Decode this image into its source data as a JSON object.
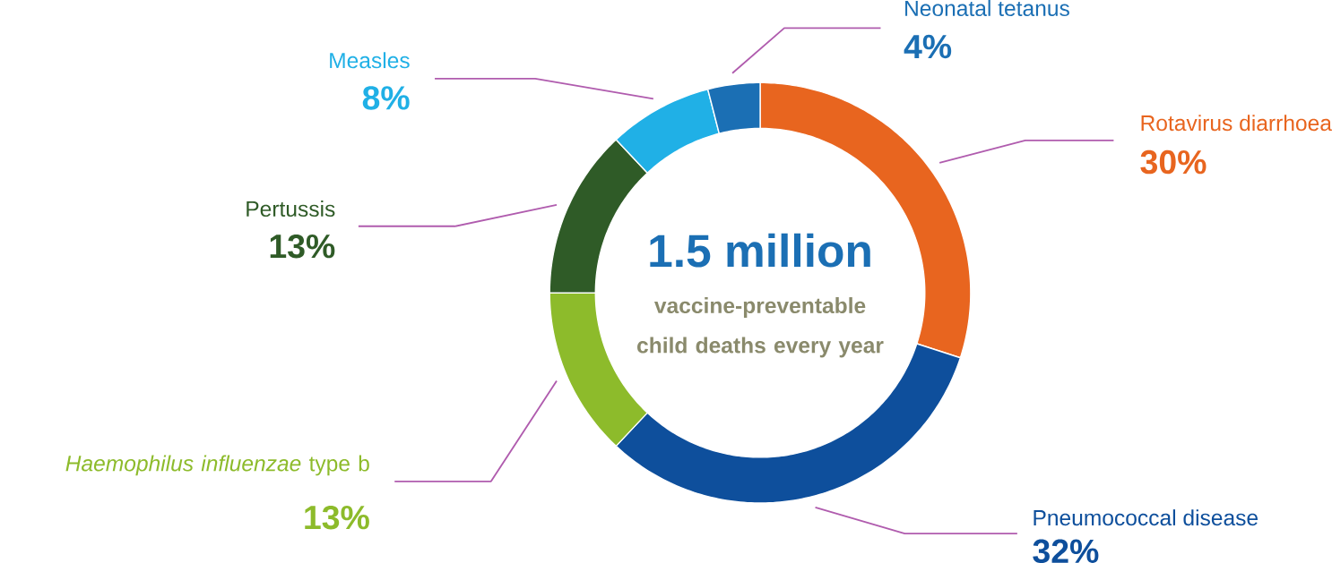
{
  "chart_data": {
    "type": "donut",
    "title": "1.5 million",
    "subtitle": "vaccine-preventable child deaths every year",
    "categories": [
      "Rotavirus diarrhoea",
      "Pneumococcal disease",
      "*Haemophilus influenzae* type b",
      "Pertussis",
      "Measles",
      "Neonatal tetanus"
    ],
    "values": [
      30,
      32,
      13,
      13,
      8,
      4
    ],
    "value_labels": [
      "30%",
      "32%",
      "13%",
      "13%",
      "8%",
      "4%"
    ],
    "colors": [
      "#e8651f",
      "#0e4f9c",
      "#8dbb2b",
      "#2f5b27",
      "#20b0e6",
      "#1b6fb4"
    ]
  }
}
